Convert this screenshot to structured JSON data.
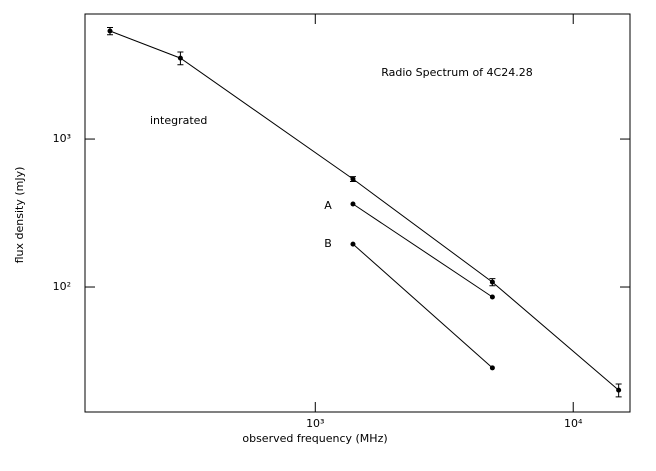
{
  "chart_data": {
    "type": "line",
    "title": "Radio Spectrum of 4C24.28",
    "x_label": "observed frequency (MHz)",
    "y_label": "flux density (mJy)",
    "log_x": true,
    "log_y": true,
    "xlim": [
      128,
      16600
    ],
    "ylim": [
      14.3,
      7000
    ],
    "xticks": [
      {
        "value": 1000,
        "label": "10³"
      },
      {
        "value": 10000,
        "label": "10⁴"
      }
    ],
    "yticks": [
      {
        "value": 100,
        "label": "10²"
      },
      {
        "value": 1000,
        "label": "10³"
      }
    ],
    "series": [
      {
        "name": "integrated",
        "color": "#000000",
        "x": [
          160,
          300,
          1400,
          4860,
          15000
        ],
        "values": [
          5370,
          3525,
          537,
          108,
          20.1
        ],
        "errors": [
          300,
          350,
          20,
          6,
          2
        ]
      },
      {
        "name": "A",
        "color": "#000000",
        "x": [
          1400,
          4860
        ],
        "values": [
          364,
          85.6
        ]
      },
      {
        "name": "B",
        "color": "#000000",
        "x": [
          1400,
          4860
        ],
        "values": [
          195,
          28.4
        ]
      }
    ]
  }
}
